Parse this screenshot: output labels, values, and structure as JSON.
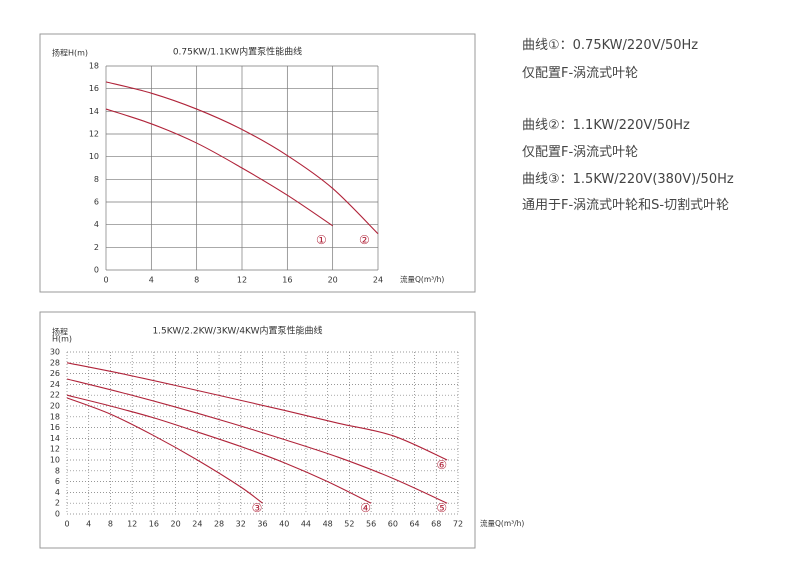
{
  "chart_data": [
    {
      "type": "line",
      "title": "0.75KW/1.1KW内置泵性能曲线",
      "ylabel": [
        "扬程H(m)"
      ],
      "xlabel": "流量Q(m³/h)",
      "xlim": [
        0,
        24
      ],
      "xticks": [
        0,
        4,
        8,
        12,
        16,
        20,
        24
      ],
      "ylim": [
        0,
        18
      ],
      "yticks": [
        0,
        2,
        4,
        6,
        8,
        10,
        12,
        14,
        16,
        18
      ],
      "grid": "solid",
      "series": [
        {
          "color": "#b0243a",
          "x": [
            0,
            4,
            8,
            12,
            16,
            20
          ],
          "values": [
            14.2,
            12.9,
            11.2,
            9,
            6.6,
            3.9
          ]
        },
        {
          "color": "#b0243a",
          "x": [
            0,
            4,
            8,
            12,
            16,
            20,
            24
          ],
          "values": [
            16.6,
            15.6,
            14.2,
            12.4,
            10.1,
            7.2,
            3.2
          ]
        }
      ],
      "annotations": [
        {
          "text": "①",
          "x": 19,
          "y": 2.6
        },
        {
          "text": "②",
          "x": 22.8,
          "y": 2.6
        }
      ]
    },
    {
      "type": "line",
      "title": "1.5KW/2.2KW/3KW/4KW内置泵性能曲线",
      "ylabel": [
        "扬程",
        "H(m)"
      ],
      "xlabel": "流量Q(m³/h)",
      "xlim": [
        0,
        72
      ],
      "xticks": [
        0,
        4,
        8,
        12,
        16,
        20,
        24,
        28,
        32,
        36,
        40,
        44,
        48,
        52,
        56,
        60,
        64,
        68,
        72
      ],
      "ylim": [
        0,
        30
      ],
      "yticks": [
        0,
        2,
        4,
        6,
        8,
        10,
        12,
        14,
        16,
        18,
        20,
        22,
        24,
        26,
        28,
        30
      ],
      "grid": "dotted",
      "series": [
        {
          "color": "#b0243a",
          "x": [
            0,
            8,
            16,
            24,
            32,
            36
          ],
          "values": [
            21.5,
            18.5,
            14.5,
            10,
            5,
            2
          ]
        },
        {
          "color": "#b0243a",
          "x": [
            0,
            8,
            16,
            24,
            32,
            40,
            48,
            56
          ],
          "values": [
            22,
            20,
            17.8,
            15.2,
            12.5,
            9.5,
            6,
            2
          ]
        },
        {
          "color": "#b0243a",
          "x": [
            0,
            10,
            20,
            30,
            40,
            50,
            60,
            70
          ],
          "values": [
            25,
            22.5,
            19.8,
            16.9,
            13.8,
            10.5,
            6.6,
            2
          ]
        },
        {
          "color": "#b0243a",
          "x": [
            0,
            10,
            20,
            30,
            40,
            50,
            60,
            70
          ],
          "values": [
            28,
            26,
            23.8,
            21.5,
            19.2,
            16.8,
            14.5,
            10
          ]
        }
      ],
      "annotations": [
        {
          "text": "③",
          "x": 35,
          "y": 1
        },
        {
          "text": "④",
          "x": 55,
          "y": 1
        },
        {
          "text": "⑤",
          "x": 69,
          "y": 1
        },
        {
          "text": "⑥",
          "x": 69,
          "y": 9
        }
      ]
    }
  ],
  "notes": [
    "曲线①：0.75KW/220V/50Hz",
    "仅配置F-涡流式叶轮",
    "曲线②：1.1KW/220V/50Hz",
    "仅配置F-涡流式叶轮",
    "曲线③：1.5KW/220V(380V)/50Hz",
    "通用于F-涡流式叶轮和S-切割式叶轮"
  ]
}
